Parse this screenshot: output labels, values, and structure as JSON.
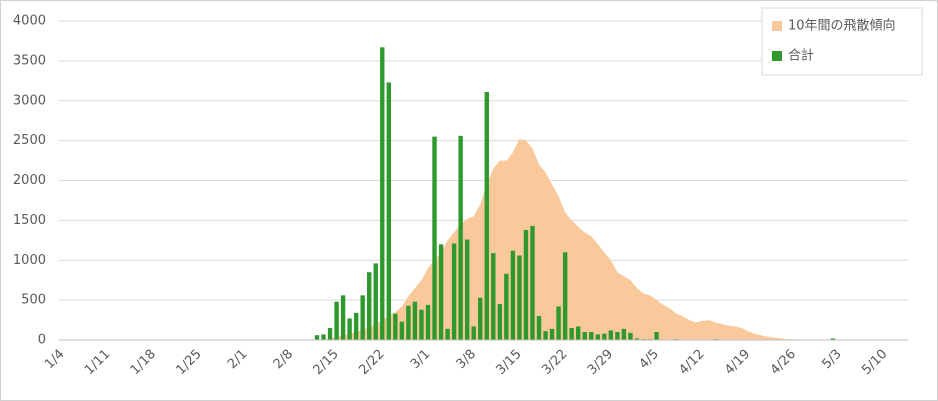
{
  "chart_data": {
    "type": "bar_area",
    "categories": [
      "1/4",
      null,
      null,
      null,
      null,
      null,
      null,
      "1/11",
      null,
      null,
      null,
      null,
      null,
      null,
      "1/18",
      null,
      null,
      null,
      null,
      null,
      null,
      "1/25",
      null,
      null,
      null,
      null,
      null,
      null,
      "2/1",
      null,
      null,
      null,
      null,
      null,
      null,
      "2/8",
      null,
      null,
      null,
      null,
      null,
      null,
      "2/15",
      null,
      null,
      null,
      null,
      null,
      null,
      "2/22",
      null,
      null,
      null,
      null,
      null,
      null,
      "3/1",
      null,
      null,
      null,
      null,
      null,
      null,
      "3/8",
      null,
      null,
      null,
      null,
      null,
      null,
      "3/15",
      null,
      null,
      null,
      null,
      null,
      null,
      "3/22",
      null,
      null,
      null,
      null,
      null,
      null,
      "3/29",
      null,
      null,
      null,
      null,
      null,
      null,
      "4/5",
      null,
      null,
      null,
      null,
      null,
      null,
      "4/12",
      null,
      null,
      null,
      null,
      null,
      null,
      "4/19",
      null,
      null,
      null,
      null,
      null,
      null,
      "4/26",
      null,
      null,
      null,
      null,
      null,
      null,
      "5/3",
      null,
      null,
      null,
      null,
      null,
      null,
      "5/10",
      null,
      null,
      null
    ],
    "series": [
      {
        "name": "10年間の飛散傾向",
        "kind": "area",
        "color": "#f9c89b",
        "values": [
          0,
          0,
          0,
          0,
          0,
          0,
          0,
          0,
          0,
          0,
          0,
          0,
          0,
          0,
          0,
          0,
          0,
          0,
          0,
          0,
          0,
          0,
          0,
          0,
          0,
          0,
          0,
          0,
          0,
          0,
          0,
          0,
          0,
          0,
          0,
          0,
          0,
          0,
          0,
          0,
          0,
          20,
          40,
          60,
          80,
          100,
          130,
          160,
          200,
          250,
          300,
          350,
          420,
          550,
          650,
          750,
          900,
          1000,
          1100,
          1250,
          1350,
          1450,
          1520,
          1550,
          1700,
          1950,
          2150,
          2250,
          2250,
          2350,
          2520,
          2500,
          2400,
          2200,
          2100,
          1950,
          1800,
          1600,
          1500,
          1420,
          1350,
          1300,
          1200,
          1100,
          1000,
          850,
          800,
          750,
          650,
          580,
          560,
          500,
          440,
          400,
          330,
          300,
          250,
          220,
          240,
          250,
          220,
          200,
          180,
          170,
          150,
          110,
          80,
          60,
          40,
          30,
          20,
          10,
          10,
          5,
          0,
          0,
          0,
          0,
          0,
          0,
          0,
          0,
          0,
          0,
          0,
          0,
          0,
          0,
          0,
          0
        ]
      },
      {
        "name": "合計",
        "kind": "bar",
        "color": "#2e9a2e",
        "values": [
          0,
          0,
          0,
          0,
          0,
          0,
          0,
          0,
          0,
          0,
          0,
          0,
          0,
          0,
          0,
          0,
          0,
          0,
          0,
          0,
          0,
          0,
          0,
          0,
          0,
          0,
          0,
          0,
          0,
          0,
          0,
          0,
          0,
          0,
          0,
          0,
          0,
          0,
          0,
          60,
          70,
          150,
          480,
          560,
          270,
          340,
          560,
          850,
          960,
          3670,
          3230,
          330,
          230,
          430,
          480,
          380,
          440,
          2550,
          1200,
          140,
          1210,
          2560,
          1260,
          170,
          530,
          3110,
          1090,
          450,
          830,
          1120,
          1060,
          1380,
          1430,
          300,
          110,
          140,
          420,
          1100,
          150,
          170,
          100,
          100,
          70,
          80,
          120,
          100,
          140,
          90,
          20,
          10,
          10,
          100,
          0,
          0,
          10,
          0,
          0,
          0,
          0,
          0,
          10,
          0,
          0,
          0,
          0,
          0,
          0,
          0,
          0,
          0,
          0,
          0,
          0,
          0,
          0,
          0,
          0,
          0,
          20,
          0,
          0,
          0,
          0,
          0,
          0,
          0,
          0,
          0,
          0,
          0
        ]
      }
    ],
    "ylim": [
      0,
      4000
    ],
    "yticks": [
      0,
      500,
      1000,
      1500,
      2000,
      2500,
      3000,
      3500,
      4000
    ],
    "grid": true,
    "legend": "top-right"
  }
}
